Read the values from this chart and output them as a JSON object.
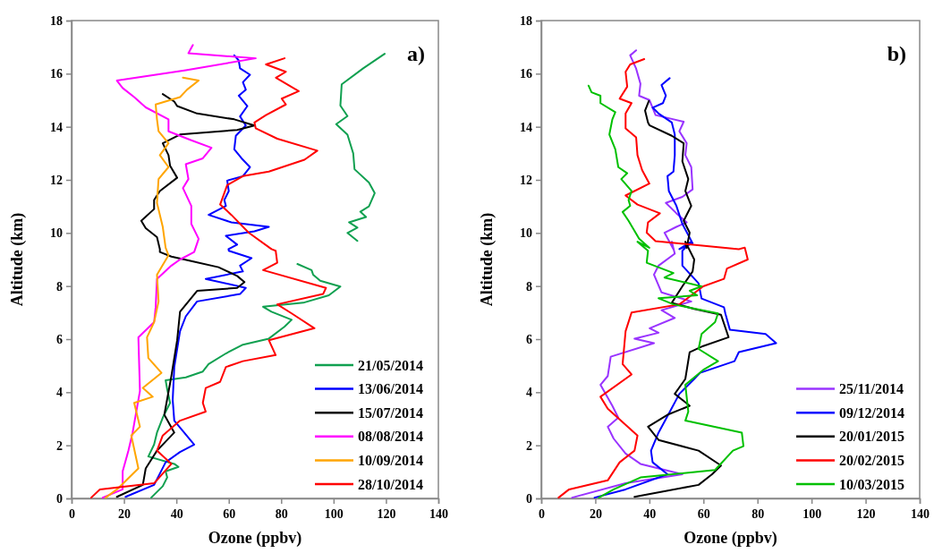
{
  "chart_data": [
    {
      "type": "line",
      "title": "a)",
      "xlabel": "Ozone (ppbv)",
      "ylabel": "Altitude (km)",
      "xlim": [
        0,
        140
      ],
      "ylim": [
        0,
        18
      ],
      "xticks": [
        0,
        20,
        40,
        60,
        80,
        100,
        120,
        140
      ],
      "yticks": [
        0,
        2,
        4,
        6,
        8,
        10,
        12,
        14,
        16,
        18
      ],
      "legend": "bottom right",
      "series": [
        {
          "name": "21/05/2014",
          "color": "#10a050",
          "x": [
            119.5,
            111.3,
            103.1,
            102.6,
            105.3,
            101,
            105.3,
            107.5,
            108,
            113.5,
            115.7,
            113.5,
            110.2,
            112.4,
            105.9,
            109.1,
            105.3,
            109.1,
            null,
            86.2,
            91.6,
            92.2,
            94.9,
            102.6,
            98.2,
            88.4,
            73.1,
            76.3,
            84,
            81.3,
            75.3,
            65.4,
            58.9,
            52.3,
            50.1,
            43.6,
            35.9,
            36.5,
            37.6,
            34.8,
            32.6,
            31.5,
            29.3,
            39.2,
            40.8,
            35.9,
            36.5,
            34.8,
            30.4
          ],
          "values": [
            16.75,
            16.2,
            15.6,
            14.8,
            14.4,
            14.1,
            13.7,
            13.0,
            12.4,
            11.9,
            11.5,
            11.0,
            10.8,
            10.6,
            10.4,
            10.2,
            10.0,
            9.7,
            null,
            8.83,
            8.6,
            8.43,
            8.2,
            7.98,
            7.65,
            7.37,
            7.22,
            7.03,
            6.73,
            6.47,
            6.02,
            5.79,
            5.46,
            5.06,
            4.78,
            4.56,
            4.45,
            4.11,
            3.6,
            3.04,
            2.48,
            2.03,
            1.58,
            1.3,
            1.19,
            1.02,
            0.79,
            0.46,
            0.03
          ]
        },
        {
          "name": "13/06/2014",
          "color": "#0000ff",
          "x": [
            62.1,
            63.8,
            64.3,
            68.1,
            65.4,
            66.5,
            63.8,
            67.1,
            64.3,
            66.5,
            62.7,
            62.1,
            64.9,
            68.1,
            65.4,
            59.4,
            60,
            58.3,
            58.9,
            52.3,
            61,
            75.3,
            69.8,
            58.9,
            63.2,
            59.9,
            60,
            68.7,
            64.3,
            65.4,
            51.2,
            66.5,
            64.3,
            47.9,
            43.6,
            41.4,
            39.2,
            38.6,
            39.2,
            46.8,
            41.4,
            35.9,
            31.5,
            20.6
          ],
          "values": [
            16.69,
            16.5,
            16.2,
            15.96,
            15.68,
            15.4,
            15.17,
            14.78,
            14.39,
            14.05,
            13.66,
            13.15,
            12.81,
            12.48,
            12.14,
            11.97,
            11.58,
            11.24,
            11.02,
            10.68,
            10.4,
            10.23,
            10.06,
            9.89,
            9.56,
            9.39,
            9.33,
            9.05,
            8.77,
            8.55,
            8.27,
            7.93,
            7.7,
            7.42,
            6.86,
            6.3,
            4.95,
            3.71,
            2.93,
            2.03,
            1.75,
            1.36,
            0.51,
            0.06
          ]
        },
        {
          "name": "15/07/2014",
          "color": "#000000",
          "x": [
            34.8,
            39.2,
            40.3,
            47.9,
            62.1,
            69.8,
            63.2,
            41.4,
            34.8,
            37,
            37.6,
            40.3,
            33.7,
            31.5,
            31.5,
            26.6,
            28.3,
            32.6,
            33.7,
            33.7,
            38.1,
            45.7,
            56.1,
            63.2,
            66,
            63.2,
            47.9,
            41.4,
            40.3,
            38.1,
            35.4,
            39.2,
            32.6,
            28.3,
            27.2,
            17.3
          ],
          "values": [
            15.23,
            14.95,
            14.78,
            14.5,
            14.28,
            14.05,
            13.88,
            13.71,
            13.38,
            12.93,
            12.53,
            12.08,
            11.58,
            11.24,
            10.9,
            10.46,
            10.18,
            9.84,
            9.39,
            9.28,
            9.11,
            8.94,
            8.71,
            8.38,
            8.15,
            7.93,
            7.82,
            7.03,
            5.96,
            4.61,
            3.15,
            2.48,
            1.8,
            1.13,
            0.51,
            0.06
          ]
        },
        {
          "name": "08/08/2014",
          "color": "#ff00ff",
          "x": [
            46.3,
            44.6,
            70.3,
            43.6,
            17.3,
            19.5,
            23.9,
            28.3,
            37,
            37,
            45.7,
            53.4,
            50.1,
            43.6,
            44.6,
            42.5,
            45.7,
            45.7,
            48.5,
            46.8,
            41.4,
            38.1,
            32.6,
            32.1,
            31.5,
            25.5,
            26.1,
            23.3,
            21.7,
            19.5,
            19.5,
            11.9
          ],
          "values": [
            17.08,
            16.77,
            16.58,
            16.13,
            15.74,
            15.46,
            15.12,
            14.73,
            14.28,
            13.83,
            13.49,
            13.21,
            12.81,
            12.59,
            12.03,
            11.69,
            11.02,
            10.34,
            9.78,
            9.28,
            9,
            8.77,
            8.27,
            7.2,
            6.64,
            6.07,
            4.05,
            2.48,
            1.8,
            1.02,
            0.34,
            0.03
          ]
        },
        {
          "name": "10/09/2014",
          "color": "#ffa500",
          "x": [
            42.5,
            48.5,
            44.1,
            41.4,
            32.1,
            32.6,
            33.2,
            37,
            33.7,
            37,
            33.2,
            32.6,
            34.8,
            35.9,
            37,
            32.6,
            33.2,
            31.5,
            28.8,
            29.3,
            34.3,
            27.2,
            31,
            23.9,
            26.1,
            22.8,
            25.5,
            17.3,
            13
          ],
          "values": [
            15.85,
            15.74,
            15.4,
            15.12,
            14.84,
            14.28,
            13.83,
            13.38,
            12.93,
            12.48,
            12.03,
            11.13,
            10.23,
            9.44,
            9.16,
            8.43,
            7.42,
            6.64,
            6.07,
            5.29,
            4.73,
            4.16,
            3.83,
            3.6,
            2.7,
            2.37,
            1.13,
            0.34,
            0.03
          ]
        },
        {
          "name": "28/10/2014",
          "color": "#ff0000",
          "x": [
            81.3,
            74.2,
            81.8,
            78,
            86.7,
            80.2,
            81.8,
            74.2,
            69.8,
            70.3,
            78.5,
            93.8,
            88.9,
            75.3,
            65.4,
            59.4,
            56.7,
            61,
            67.6,
            76.3,
            77.9,
            78.5,
            73.1,
            97.1,
            96,
            78.5,
            84,
            92.7,
            75.3,
            77.9,
            65.4,
            58.9,
            56.7,
            51.2,
            50.1,
            51.2,
            41.4,
            34.8,
            32.6,
            38.1,
            31.5,
            10.8,
            7.5
          ],
          "values": [
            16.58,
            16.35,
            16.07,
            15.85,
            15.34,
            15.06,
            14.84,
            14.44,
            14.16,
            13.94,
            13.55,
            13.1,
            12.76,
            12.31,
            12.14,
            11.8,
            11.07,
            10.68,
            10.01,
            9.39,
            9.33,
            8.88,
            8.6,
            7.93,
            7.7,
            7.31,
            6.97,
            6.41,
            5.96,
            5.4,
            5.17,
            4.95,
            4.39,
            4.16,
            3.6,
            3.27,
            2.93,
            2.37,
            1.8,
            1.3,
            0.57,
            0.34,
            0.03
          ]
        }
      ]
    },
    {
      "type": "line",
      "title": "b)",
      "xlabel": "Ozone (ppbv)",
      "ylabel": "Altitude (km)",
      "xlim": [
        0,
        140
      ],
      "ylim": [
        0,
        18
      ],
      "xticks": [
        0,
        20,
        40,
        60,
        80,
        100,
        120,
        140
      ],
      "yticks": [
        0,
        2,
        4,
        6,
        8,
        10,
        12,
        14,
        16,
        18
      ],
      "legend": "bottom right",
      "series": [
        {
          "name": "25/11/2014",
          "color": "#9933ff",
          "x": [
            35.1,
            32.9,
            35.1,
            36.7,
            36.2,
            40,
            42.3,
            52.7,
            51.1,
            53.8,
            53.3,
            55.5,
            56,
            52.2,
            46.1,
            50,
            53.8,
            50,
            45.6,
            48.9,
            48.3,
            49.4,
            43.4,
            41.7,
            44.5,
            55.5,
            44.5,
            49.4,
            40.1,
            43.4,
            34.5,
            41.7,
            25.7,
            24.6,
            21.9,
            26.3,
            28.5,
            24.6,
            26.8,
            31.2,
            36.7,
            52.2,
            31.2,
            11.4
          ],
          "values": [
            16.88,
            16.69,
            16.19,
            15.62,
            15.17,
            15.01,
            14.44,
            14.19,
            13.83,
            13.38,
            12.93,
            12.48,
            11.64,
            11.36,
            11.13,
            10.74,
            10.4,
            10.23,
            10.01,
            9.39,
            9.67,
            9.22,
            8.77,
            8.43,
            7.76,
            7.42,
            7.09,
            6.8,
            6.41,
            6.24,
            6.02,
            5.85,
            5.34,
            4.61,
            4.28,
            3.49,
            3.04,
            2.7,
            2.25,
            1.69,
            1.3,
            0.91,
            0.57,
            0.03
          ]
        },
        {
          "name": "09/12/2014",
          "color": "#0000ff",
          "x": [
            47.5,
            44.5,
            46.1,
            45,
            41.2,
            43.4,
            48.3,
            49.4,
            49.4,
            48.9,
            46.7,
            47.2,
            50,
            52.2,
            56,
            51.1,
            55.5,
            52.2,
            52.2,
            58.2,
            59.3,
            67.6,
            68.1,
            69.8,
            83,
            86.9,
            73.1,
            71.5,
            58.8,
            56.6,
            51.1,
            46.7,
            43.4,
            40.6,
            41.2,
            46.7,
            31.2,
            19.7
          ],
          "values": [
            15.83,
            15.57,
            15.17,
            14.89,
            14.72,
            14.5,
            14.16,
            13.71,
            12.93,
            12.31,
            12.14,
            11.58,
            11.02,
            10.34,
            9.61,
            9.39,
            9.67,
            9.33,
            8.77,
            8.1,
            7.53,
            7.2,
            6.97,
            6.35,
            6.19,
            5.85,
            5.51,
            5.17,
            4.73,
            4.5,
            3.94,
            3.1,
            2.48,
            1.8,
            1.36,
            0.91,
            0.34,
            0.03
          ]
        },
        {
          "name": "20/01/2015",
          "color": "#000000",
          "x": [
            39.8,
            38.4,
            39.5,
            40.1,
            48.3,
            52.7,
            52.2,
            54.4,
            53.3,
            55.5,
            52.7,
            54.9,
            53.8,
            53.3,
            56.6,
            56,
            52.2,
            48.3,
            56.6,
            66.5,
            69.3,
            59.9,
            54.9,
            53.3,
            49.4,
            54.9,
            46.7,
            39.5,
            43.4,
            58.2,
            66.5,
            63.2,
            58.2,
            34.5
          ],
          "values": [
            14.97,
            14.61,
            14.16,
            14.05,
            13.66,
            13.38,
            12.7,
            12.03,
            11.58,
            11.02,
            10.46,
            10.01,
            9.44,
            9.67,
            9,
            8.55,
            7.99,
            7.37,
            7.14,
            6.92,
            6.07,
            5.74,
            5.51,
            4.5,
            3.94,
            3.49,
            3.15,
            2.7,
            2.2,
            1.8,
            1.24,
            0.91,
            0.51,
            0.06
          ]
        },
        {
          "name": "20/02/2015",
          "color": "#ff0000",
          "x": [
            38.1,
            32.9,
            31.2,
            31.8,
            29,
            33.4,
            31.2,
            31.2,
            35.1,
            35.6,
            37.3,
            40,
            31.2,
            35.6,
            43.9,
            39.5,
            39,
            42.3,
            73.1,
            75.3,
            76.4,
            68.7,
            67.6,
            59.9,
            51.1,
            33.4,
            31.2,
            30.1,
            33.4,
            21.9,
            24.6,
            35.6,
            34.5,
            29,
            24.6,
            10.3,
            6.4
          ],
          "values": [
            16.55,
            16.35,
            16.07,
            15.51,
            15.06,
            14.89,
            14.5,
            13.94,
            13.6,
            12.93,
            12.37,
            11.86,
            11.41,
            11.07,
            10.74,
            10.4,
            10.01,
            9.69,
            9.39,
            9.45,
            9,
            8.66,
            8.27,
            7.99,
            7.31,
            7,
            6.3,
            5.06,
            4.67,
            3.83,
            3.38,
            2.37,
            1.8,
            1.36,
            0.68,
            0.34,
            0.03
          ]
        },
        {
          "name": "10/03/2015",
          "color": "#00c000",
          "x": [
            17.5,
            18.6,
            21.9,
            21.9,
            27.4,
            26.3,
            25.2,
            27.4,
            28.5,
            31.8,
            29.6,
            33.4,
            32.3,
            32.9,
            30.1,
            32.3,
            36.2,
            40,
            35.6,
            39.5,
            39,
            48.9,
            45.6,
            59.3,
            54.9,
            57.7,
            43.4,
            48.9,
            65.4,
            64.3,
            59.3,
            58.2,
            65.4,
            59.9,
            53.3,
            54.4,
            53.3,
            74.2,
            74.8,
            70.9,
            64.3,
            36.7,
            26.8,
            21.3
          ],
          "values": [
            15.55,
            15.3,
            15.17,
            14.89,
            14.55,
            14.28,
            13.71,
            13.15,
            12.48,
            12.25,
            12.03,
            11.58,
            11.24,
            11.02,
            10.79,
            10.46,
            9.78,
            9.44,
            9.67,
            9.33,
            8.88,
            8.49,
            8.32,
            7.99,
            7.82,
            7.65,
            7.54,
            7.31,
            6.97,
            6.64,
            6.19,
            5.63,
            5.17,
            4.84,
            4.28,
            3.27,
            2.93,
            2.48,
            1.97,
            1.8,
            1.07,
            0.79,
            0.34,
            0.03
          ]
        }
      ]
    }
  ]
}
